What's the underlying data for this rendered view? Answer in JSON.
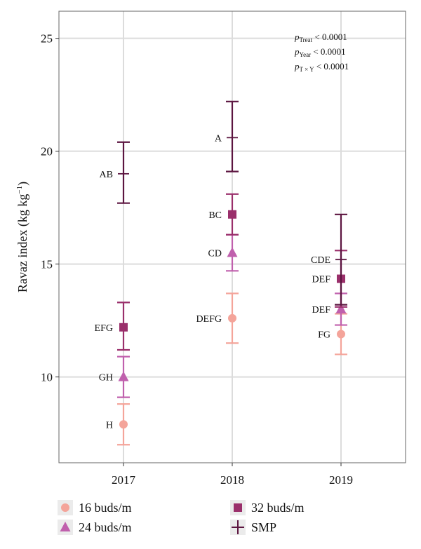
{
  "chart_data": {
    "type": "scatter",
    "ylabel": "Ravaz index (kg kg",
    "ylabel_sup": "−1",
    "ylabel_end": ")",
    "categories": [
      "2017",
      "2018",
      "2019"
    ],
    "ylim": [
      6.2,
      26.2
    ],
    "yticks": [
      10,
      15,
      20,
      25
    ],
    "grid": true,
    "legend_position": "bottom",
    "annotations": [
      {
        "p": "p",
        "sub": "Treat",
        "rest": " < 0.0001"
      },
      {
        "p": "p",
        "sub": "Year",
        "rest": " < 0.0001"
      },
      {
        "p": "p",
        "sub": "T × Y",
        "rest": " < 0.0001"
      }
    ],
    "series": [
      {
        "name": "16 buds/m",
        "marker": "circle",
        "color": "#f4a49a",
        "points": [
          {
            "x": "2017",
            "y": 7.9,
            "low": 7.0,
            "high": 8.8,
            "label": "H"
          },
          {
            "x": "2018",
            "y": 12.6,
            "low": 11.5,
            "high": 13.7,
            "label": "DEFG"
          },
          {
            "x": "2019",
            "y": 11.9,
            "low": 11.0,
            "high": 12.8,
            "label": "FG"
          }
        ]
      },
      {
        "name": "24 buds/m",
        "marker": "triangle",
        "color": "#c060ad",
        "points": [
          {
            "x": "2017",
            "y": 10.0,
            "low": 9.1,
            "high": 10.9,
            "label": "GH"
          },
          {
            "x": "2018",
            "y": 15.5,
            "low": 14.7,
            "high": 16.3,
            "label": "CD"
          },
          {
            "x": "2019",
            "y": 13.0,
            "low": 12.3,
            "high": 13.7,
            "label": "DEF"
          }
        ]
      },
      {
        "name": "32 buds/m",
        "marker": "square",
        "color": "#9a2f6b",
        "points": [
          {
            "x": "2017",
            "y": 12.2,
            "low": 11.2,
            "high": 13.3,
            "label": "EFG"
          },
          {
            "x": "2018",
            "y": 17.2,
            "low": 16.3,
            "high": 18.1,
            "label": "BC"
          },
          {
            "x": "2019",
            "y": 14.35,
            "low": 13.1,
            "high": 15.6,
            "label": "DEF"
          }
        ]
      },
      {
        "name": "SMP",
        "marker": "plus",
        "color": "#5c1540",
        "points": [
          {
            "x": "2017",
            "y": 19.0,
            "low": 17.7,
            "high": 20.4,
            "label": "AB"
          },
          {
            "x": "2018",
            "y": 20.6,
            "low": 19.1,
            "high": 22.2,
            "label": "A"
          },
          {
            "x": "2019",
            "y": 15.2,
            "low": 13.2,
            "high": 17.2,
            "label": "CDE"
          }
        ]
      }
    ]
  }
}
